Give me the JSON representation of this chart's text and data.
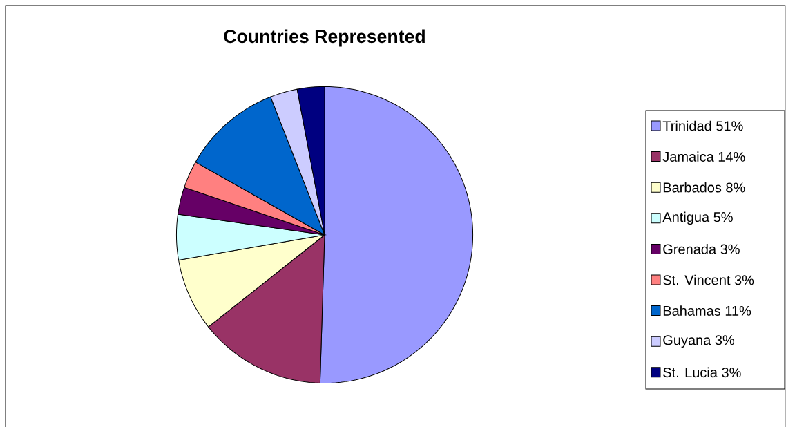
{
  "chart_data": {
    "type": "pie",
    "title": "Countries Represented",
    "categories": [
      "Trinidad 51%",
      "Jamaica 14%",
      "Barbados 8%",
      "Antigua 5%",
      "Grenada 3%",
      "St. Vincent 3%",
      "Bahamas 11%",
      "Guyana 3%",
      "St. Lucia 3%"
    ],
    "values": [
      51,
      14,
      8,
      5,
      3,
      3,
      11,
      3,
      3
    ],
    "colors": [
      "#9999ff",
      "#993366",
      "#ffffcc",
      "#ccffff",
      "#660066",
      "#ff8080",
      "#0066cc",
      "#ccccff",
      "#000080"
    ],
    "legend": "right"
  }
}
